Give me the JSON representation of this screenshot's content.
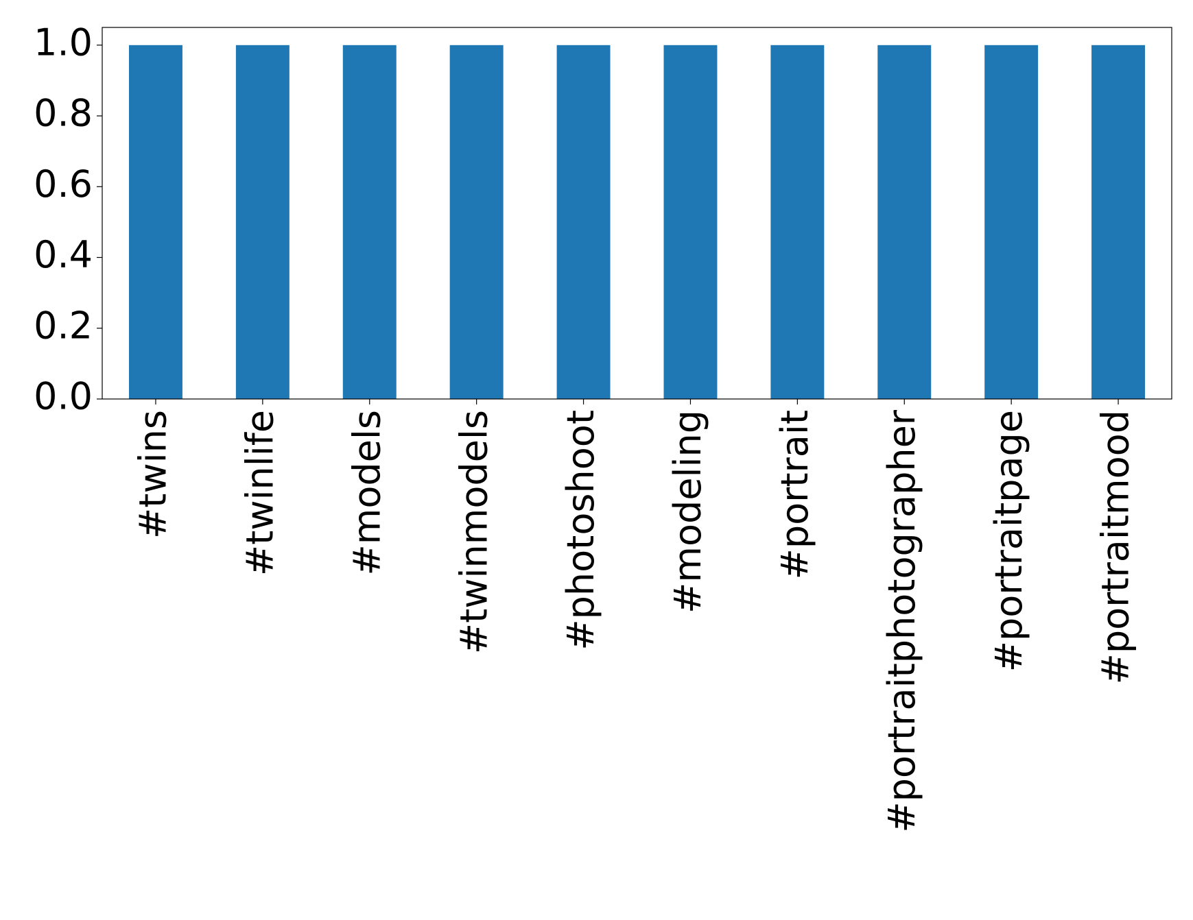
{
  "chart_data": {
    "type": "bar",
    "categories": [
      "#twins",
      "#twinlife",
      "#models",
      "#twinmodels",
      "#photoshoot",
      "#modeling",
      "#portrait",
      "#portraitphotographer",
      "#portraitpage",
      "#portraitmood"
    ],
    "values": [
      1,
      1,
      1,
      1,
      1,
      1,
      1,
      1,
      1,
      1
    ],
    "color": "#1f77b4",
    "ylim": [
      0,
      1.05
    ],
    "yticks": [
      {
        "value": 0,
        "label": "0.0"
      },
      0.2,
      0.4,
      0.6,
      0.8,
      {
        "value": 1,
        "label": "1.0"
      }
    ],
    "grid": false
  }
}
